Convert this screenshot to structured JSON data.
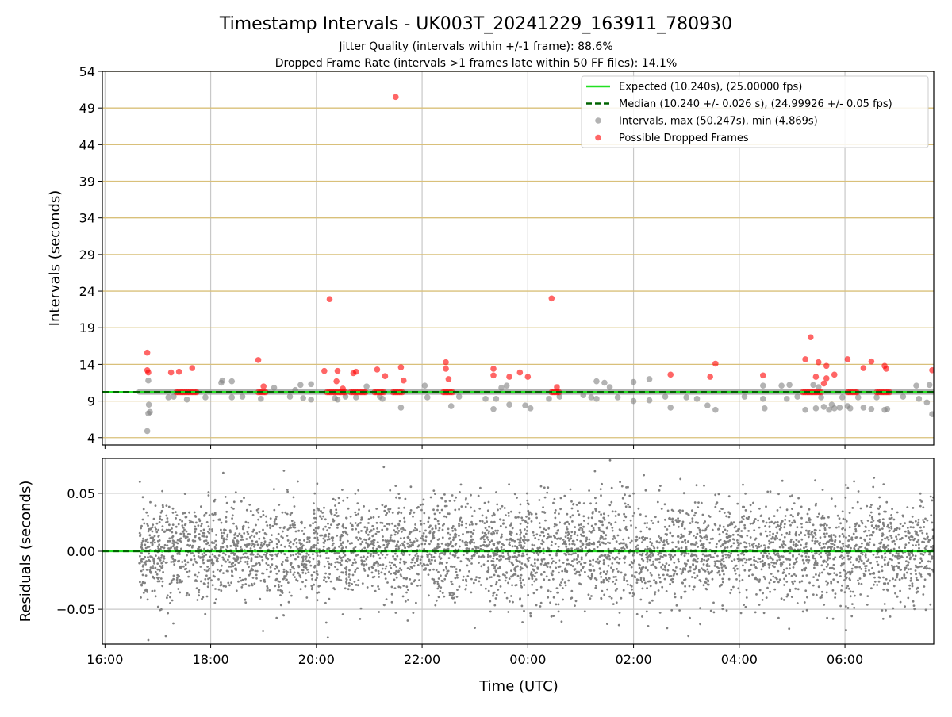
{
  "title": "Timestamp Intervals - UK003T_20241229_163911_780930",
  "subtitle1": "Jitter Quality (intervals within +/-1 frame): 88.6%",
  "subtitle2": "Dropped Frame Rate (intervals >1 frames late within 50 FF files): 14.1%",
  "chart_data": [
    {
      "type": "scatter",
      "panel": "top",
      "ylabel": "Intervals (seconds)",
      "ylim": [
        3,
        54
      ],
      "yticks": [
        "4",
        "9",
        "14",
        "19",
        "24",
        "29",
        "34",
        "39",
        "44",
        "49",
        "54"
      ],
      "xlim_hours": [
        15.95,
        31.68
      ],
      "grid": true,
      "legend_position": "upper right",
      "legend": [
        "Expected (10.240s), (25.00000 fps)",
        "Median (10.240 +/- 0.026 s), (24.99926 +/- 0.05 fps)",
        "Intervals, max (50.247s), min (4.869s)",
        "Possible Dropped Frames"
      ],
      "expected_value": 10.24,
      "median_value": 10.24,
      "series": [
        {
          "name": "Intervals, max (50.247s), min (4.869s)",
          "color": "#808080",
          "points": [
            [
              16.8,
              4.9
            ],
            [
              16.82,
              7.3
            ],
            [
              16.83,
              8.5
            ],
            [
              16.85,
              7.5
            ],
            [
              16.82,
              11.8
            ],
            [
              17.2,
              9.5
            ],
            [
              17.3,
              9.6
            ],
            [
              17.55,
              9.2
            ],
            [
              17.9,
              9.5
            ],
            [
              18.2,
              11.5
            ],
            [
              18.22,
              11.8
            ],
            [
              18.4,
              11.7
            ],
            [
              18.4,
              9.5
            ],
            [
              18.6,
              9.6
            ],
            [
              18.95,
              9.3
            ],
            [
              19.2,
              10.8
            ],
            [
              19.5,
              9.6
            ],
            [
              19.6,
              10.5
            ],
            [
              19.7,
              11.2
            ],
            [
              19.75,
              9.4
            ],
            [
              19.9,
              9.2
            ],
            [
              19.9,
              11.3
            ],
            [
              20.35,
              9.4
            ],
            [
              20.4,
              9.2
            ],
            [
              20.55,
              9.6
            ],
            [
              20.75,
              9.5
            ],
            [
              20.95,
              11.0
            ],
            [
              21.2,
              9.6
            ],
            [
              21.25,
              9.3
            ],
            [
              21.6,
              8.1
            ],
            [
              22.05,
              11.1
            ],
            [
              22.1,
              9.5
            ],
            [
              22.55,
              8.3
            ],
            [
              22.7,
              9.6
            ],
            [
              23.2,
              9.3
            ],
            [
              23.35,
              7.9
            ],
            [
              23.4,
              9.3
            ],
            [
              23.5,
              10.8
            ],
            [
              23.6,
              11.1
            ],
            [
              23.65,
              8.5
            ],
            [
              23.95,
              8.4
            ],
            [
              24.05,
              8.0
            ],
            [
              24.4,
              9.3
            ],
            [
              24.6,
              9.6
            ],
            [
              25.05,
              9.8
            ],
            [
              25.2,
              9.5
            ],
            [
              25.3,
              11.7
            ],
            [
              25.3,
              9.3
            ],
            [
              25.45,
              11.5
            ],
            [
              25.55,
              10.9
            ],
            [
              25.7,
              9.5
            ],
            [
              26.0,
              11.6
            ],
            [
              26.0,
              9.0
            ],
            [
              26.3,
              12.0
            ],
            [
              26.3,
              9.1
            ],
            [
              26.6,
              9.6
            ],
            [
              26.7,
              8.1
            ],
            [
              27.0,
              9.5
            ],
            [
              27.2,
              9.3
            ],
            [
              27.4,
              8.4
            ],
            [
              27.55,
              7.8
            ],
            [
              28.1,
              9.6
            ],
            [
              28.45,
              9.3
            ],
            [
              28.45,
              11.1
            ],
            [
              28.48,
              8.0
            ],
            [
              28.8,
              11.1
            ],
            [
              28.9,
              9.3
            ],
            [
              28.95,
              11.2
            ],
            [
              29.1,
              9.6
            ],
            [
              29.25,
              7.8
            ],
            [
              29.4,
              11.2
            ],
            [
              29.45,
              8.0
            ],
            [
              29.5,
              10.9
            ],
            [
              29.55,
              9.5
            ],
            [
              29.6,
              8.2
            ],
            [
              29.7,
              7.8
            ],
            [
              29.75,
              8.5
            ],
            [
              29.8,
              8.0
            ],
            [
              29.9,
              8.1
            ],
            [
              29.95,
              9.5
            ],
            [
              30.05,
              8.3
            ],
            [
              30.1,
              8.0
            ],
            [
              30.25,
              9.5
            ],
            [
              30.35,
              8.1
            ],
            [
              30.5,
              7.9
            ],
            [
              30.6,
              9.5
            ],
            [
              30.75,
              7.8
            ],
            [
              30.8,
              7.9
            ],
            [
              31.1,
              9.6
            ],
            [
              31.35,
              11.1
            ],
            [
              31.4,
              9.3
            ],
            [
              31.55,
              8.8
            ],
            [
              31.6,
              11.2
            ],
            [
              31.65,
              7.2
            ]
          ]
        },
        {
          "name": "Possible Dropped Frames",
          "color": "#ff0000",
          "points": [
            [
              16.8,
              15.6
            ],
            [
              16.8,
              13.2
            ],
            [
              16.82,
              12.9
            ],
            [
              17.25,
              12.9
            ],
            [
              17.4,
              13.0
            ],
            [
              17.65,
              13.5
            ],
            [
              18.9,
              14.6
            ],
            [
              19.0,
              11.0
            ],
            [
              20.15,
              13.1
            ],
            [
              20.25,
              22.9
            ],
            [
              20.4,
              13.1
            ],
            [
              20.38,
              11.7
            ],
            [
              20.5,
              10.7
            ],
            [
              20.7,
              12.8
            ],
            [
              20.75,
              13.0
            ],
            [
              21.15,
              13.3
            ],
            [
              21.3,
              12.4
            ],
            [
              21.5,
              50.5
            ],
            [
              21.6,
              13.6
            ],
            [
              21.65,
              11.8
            ],
            [
              22.45,
              14.3
            ],
            [
              22.45,
              13.4
            ],
            [
              22.5,
              12.0
            ],
            [
              23.35,
              13.4
            ],
            [
              23.35,
              12.5
            ],
            [
              23.65,
              12.3
            ],
            [
              23.85,
              12.9
            ],
            [
              24.0,
              12.3
            ],
            [
              24.45,
              23.0
            ],
            [
              24.55,
              10.9
            ],
            [
              26.7,
              12.6
            ],
            [
              27.45,
              12.3
            ],
            [
              27.55,
              14.1
            ],
            [
              28.45,
              12.5
            ],
            [
              29.25,
              14.7
            ],
            [
              29.35,
              17.7
            ],
            [
              29.45,
              12.3
            ],
            [
              29.5,
              14.3
            ],
            [
              29.6,
              11.4
            ],
            [
              29.65,
              13.8
            ],
            [
              29.65,
              12.1
            ],
            [
              29.8,
              12.6
            ],
            [
              30.05,
              14.7
            ],
            [
              30.35,
              13.5
            ],
            [
              30.5,
              14.4
            ],
            [
              30.75,
              13.8
            ],
            [
              30.78,
              13.4
            ],
            [
              31.65,
              13.2
            ]
          ]
        },
        {
          "name": "Possible Dropped Frames",
          "color": "#ff0000",
          "segments_at_10_2": [
            [
              17.35,
              17.75
            ],
            [
              18.9,
              19.05
            ],
            [
              20.2,
              20.55
            ],
            [
              20.65,
              20.95
            ],
            [
              21.1,
              21.3
            ],
            [
              21.45,
              21.65
            ],
            [
              22.4,
              22.6
            ],
            [
              24.45,
              24.6
            ],
            [
              29.2,
              29.55
            ],
            [
              30.05,
              30.25
            ],
            [
              30.6,
              30.85
            ]
          ]
        }
      ]
    },
    {
      "type": "scatter",
      "panel": "bottom",
      "xlabel": "Time (UTC)",
      "ylabel": "Residuals (seconds)",
      "ylim": [
        -0.08,
        0.08
      ],
      "yticks": [
        "−0.05",
        "0.00",
        "0.05"
      ],
      "xticks": [
        "16:00",
        "18:00",
        "20:00",
        "22:00",
        "00:00",
        "02:00",
        "04:00",
        "06:00"
      ],
      "x_range_hours": [
        16.65,
        31.68
      ],
      "residual_spread_std": 0.022,
      "grid": true,
      "color": "#808080"
    }
  ]
}
